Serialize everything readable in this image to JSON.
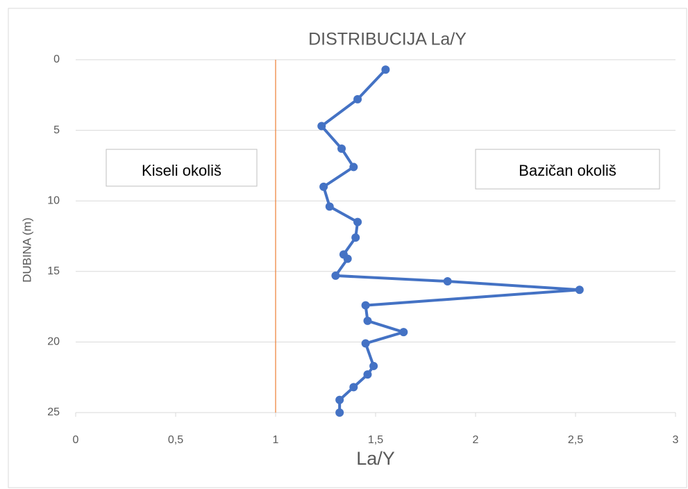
{
  "chart_data": {
    "type": "line",
    "title": "DISTRIBUCIJA La/Y",
    "x_label": "La/Y",
    "y_label": "DUBINA (m)",
    "x": [
      1.55,
      1.41,
      1.23,
      1.33,
      1.39,
      1.24,
      1.27,
      1.41,
      1.4,
      1.34,
      1.36,
      1.3,
      1.86,
      2.52,
      1.45,
      1.46,
      1.64,
      1.45,
      1.49,
      1.46,
      1.39,
      1.32,
      1.32
    ],
    "series": [
      {
        "name": "La/Y",
        "color": "#4472c4",
        "values": [
          0.7,
          2.8,
          4.7,
          6.3,
          7.6,
          9.0,
          10.4,
          11.5,
          12.6,
          13.8,
          14.1,
          15.3,
          15.7,
          16.3,
          17.4,
          18.5,
          19.3,
          20.1,
          21.7,
          22.3,
          23.2,
          24.1,
          25.0
        ]
      }
    ],
    "xlim": [
      0,
      3
    ],
    "xticks": [
      0,
      {
        "value": 0.5,
        "label": "0,5"
      },
      1,
      {
        "value": 1.5,
        "label": "1,5"
      },
      2,
      {
        "value": 2.5,
        "label": "2,5"
      },
      3
    ],
    "ylim": [
      0,
      25
    ],
    "yticks": [
      0,
      5,
      10,
      15,
      20,
      25
    ],
    "y_inverted": true,
    "grid": true,
    "reference_line": {
      "x": 1,
      "color": "#ed7d31"
    },
    "annotations": [
      "Kiseli okoliš",
      "Bazičan okoliš"
    ]
  }
}
